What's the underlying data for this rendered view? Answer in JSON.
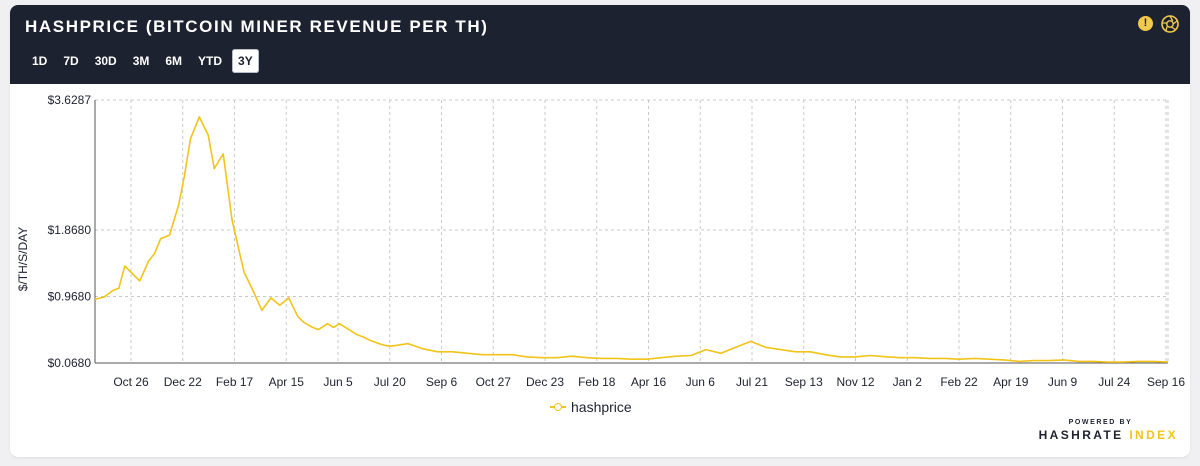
{
  "header": {
    "title": "HASHPRICE (BITCOIN MINER REVENUE PER TH)",
    "warning_icon": "alert-icon",
    "camera_icon": "aperture-icon"
  },
  "tabs": [
    {
      "label": "1D",
      "active": false
    },
    {
      "label": "7D",
      "active": false
    },
    {
      "label": "30D",
      "active": false
    },
    {
      "label": "3M",
      "active": false
    },
    {
      "label": "6M",
      "active": false
    },
    {
      "label": "YTD",
      "active": false
    },
    {
      "label": "3Y",
      "active": true
    }
  ],
  "colors": {
    "header_bg": "#1d2230",
    "line": "#f0c419",
    "grid": "#c8c8c8"
  },
  "chart_data": {
    "type": "line",
    "ylabel": "$/TH/S/DAY",
    "ylim": [
      0.068,
      3.6287
    ],
    "y_ticks": [
      {
        "label": "$3.6287",
        "value": 3.6287
      },
      {
        "label": "$1.8680",
        "value": 1.868
      },
      {
        "label": "$0.9680",
        "value": 0.968
      },
      {
        "label": "$0.0680",
        "value": 0.068
      }
    ],
    "x_ticks": [
      "Oct 26",
      "Dec 22",
      "Feb 17",
      "Apr 15",
      "Jun 5",
      "Jul 20",
      "Sep 6",
      "Oct 27",
      "Dec 23",
      "Feb 18",
      "Apr 16",
      "Jun 6",
      "Jul 21",
      "Sep 13",
      "Nov 12",
      "Jan 2",
      "Feb 22",
      "Apr 19",
      "Jun 9",
      "Jul 24",
      "Sep 16"
    ],
    "grid": true,
    "legend": "bottom-center",
    "series": [
      {
        "name": "hashprice",
        "x": [
          0,
          0.3,
          0.6,
          0.8,
          1.0,
          1.2,
          1.5,
          1.8,
          2.0,
          2.2,
          2.5,
          2.8,
          3.0,
          3.2,
          3.5,
          3.8,
          4.0,
          4.3,
          4.6,
          5.0,
          5.3,
          5.6,
          5.9,
          6.2,
          6.5,
          6.8,
          7.0,
          7.3,
          7.5,
          7.8,
          8.0,
          8.2,
          8.4,
          8.6,
          8.8,
          9.0,
          9.2,
          9.4,
          9.6,
          9.8,
          10.0,
          10.5,
          11.0,
          11.5,
          12.0,
          12.5,
          13.0,
          13.5,
          14.0,
          14.5,
          15.0,
          15.5,
          16.0,
          16.5,
          17.0,
          17.5,
          18.0,
          18.5,
          19.0,
          19.5,
          20.0,
          20.5,
          21.0,
          21.5,
          22.0,
          22.5,
          23.0,
          23.5,
          24.0,
          24.5,
          25.0,
          25.5,
          26.0,
          26.3,
          26.6,
          27.0,
          27.5,
          28.0,
          28.5,
          29.0,
          29.5,
          30.0,
          30.5,
          31.0,
          31.5,
          32.0,
          32.5,
          33.0,
          33.5,
          34.0,
          34.5,
          35.0,
          35.5,
          36.0
        ],
        "values": [
          0.93,
          0.96,
          1.05,
          1.08,
          1.38,
          1.3,
          1.18,
          1.45,
          1.55,
          1.75,
          1.8,
          2.2,
          2.6,
          3.1,
          3.4,
          3.15,
          2.7,
          2.9,
          2.0,
          1.3,
          1.05,
          0.78,
          0.95,
          0.85,
          0.95,
          0.7,
          0.62,
          0.55,
          0.52,
          0.6,
          0.55,
          0.6,
          0.55,
          0.5,
          0.45,
          0.42,
          0.38,
          0.35,
          0.32,
          0.3,
          0.3,
          0.33,
          0.26,
          0.22,
          0.22,
          0.2,
          0.18,
          0.18,
          0.18,
          0.15,
          0.14,
          0.14,
          0.16,
          0.14,
          0.13,
          0.13,
          0.12,
          0.12,
          0.14,
          0.16,
          0.17,
          0.25,
          0.2,
          0.28,
          0.36,
          0.28,
          0.25,
          0.22,
          0.22,
          0.18,
          0.15,
          0.15,
          0.17,
          0.16,
          0.15,
          0.14,
          0.14,
          0.13,
          0.13,
          0.12,
          0.13,
          0.12,
          0.11,
          0.09,
          0.1,
          0.1,
          0.11,
          0.09,
          0.09,
          0.08,
          0.08,
          0.09,
          0.09,
          0.08
        ]
      }
    ]
  },
  "legend": {
    "label": "hashprice"
  },
  "brand": {
    "small": "POWERED BY",
    "name_part1": "HASHRATE",
    "name_part2": "INDEX"
  }
}
